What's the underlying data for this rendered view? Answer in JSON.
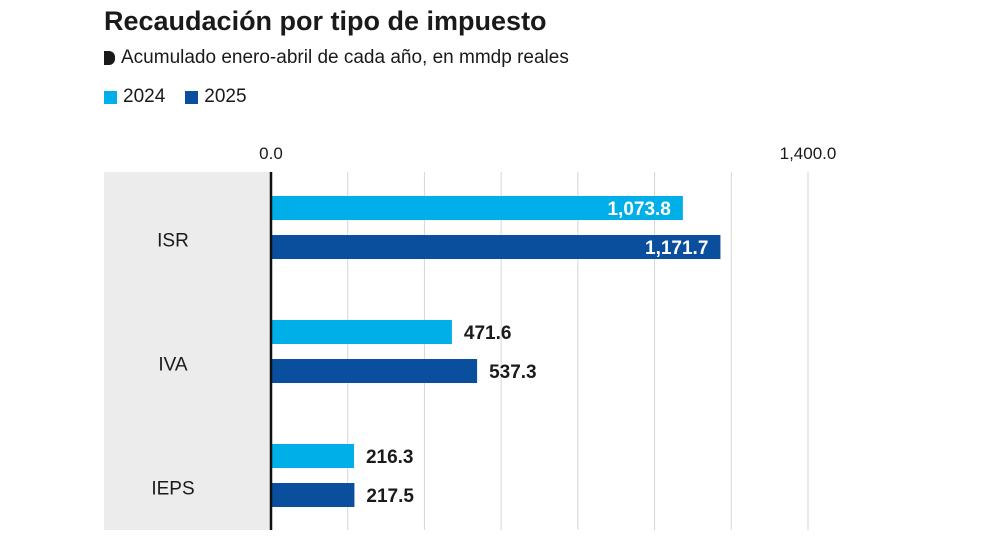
{
  "title": "Recaudación por tipo de impuesto",
  "subtitle": "Acumulado enero-abril de cada año, en mmdp reales",
  "colors": {
    "series_2024": "#00aee8",
    "series_2025": "#0a4f9e",
    "category_band": "#ececec",
    "gridline": "#d6d6d6",
    "axis": "#111111"
  },
  "chart_data": {
    "type": "bar",
    "orientation": "horizontal",
    "categories": [
      "ISR",
      "IVA",
      "IEPS"
    ],
    "series": [
      {
        "name": "2024",
        "values": [
          1073.8,
          471.6,
          216.3
        ]
      },
      {
        "name": "2025",
        "values": [
          1171.7,
          537.3,
          217.5
        ]
      }
    ],
    "value_labels": [
      [
        "1,073.8",
        "471.6",
        "216.3"
      ],
      [
        "1,171.7",
        "537.3",
        "217.5"
      ]
    ],
    "xlim": [
      0,
      1400
    ],
    "x_tick_labels": [
      "0.0",
      "1,400.0"
    ],
    "grid": true,
    "legend_position": "top-left",
    "title": "Recaudación por tipo de impuesto",
    "subtitle": "Acumulado enero-abril de cada año, en mmdp reales"
  }
}
